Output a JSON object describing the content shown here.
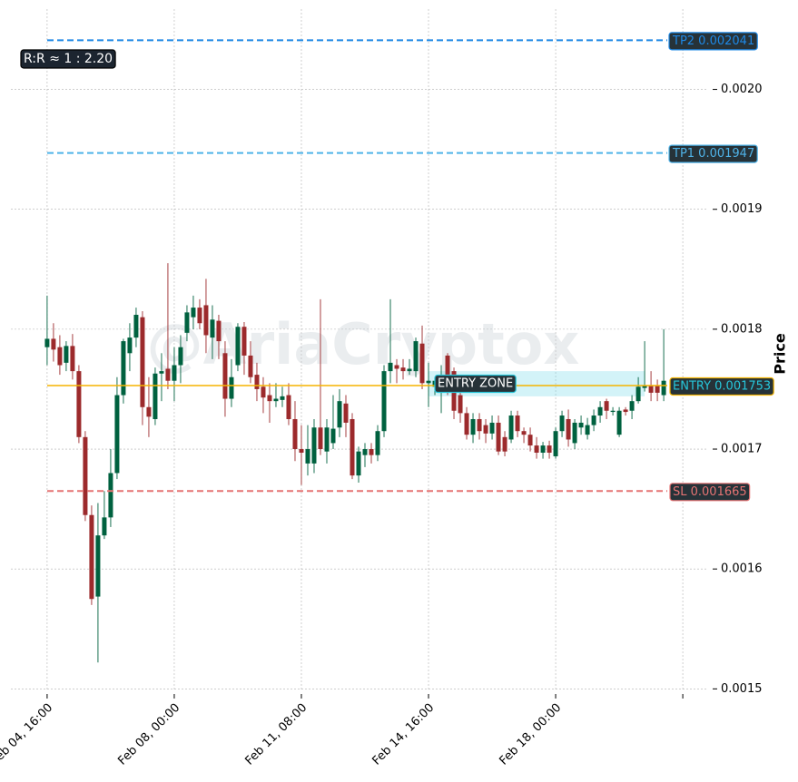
{
  "chart_data": {
    "type": "candlestick",
    "y_label": "Price",
    "watermark": "@AriaCryptox",
    "annotation": "R:R ≈ 1 : 2.20",
    "up_color": "#00613f",
    "down_color": "#9c2a2c",
    "grid": true,
    "xlim": [
      -5.7,
      103.7
    ],
    "xticks": [
      {
        "value": 0,
        "label": "Feb 04, 16:00"
      },
      {
        "value": 20,
        "label": "Feb 08, 00:00"
      },
      {
        "value": 40,
        "label": "Feb 11, 08:00"
      },
      {
        "value": 60,
        "label": "Feb 14, 16:00"
      },
      {
        "value": 80,
        "label": "Feb 18, 00:00"
      },
      {
        "value": 100,
        "label": null
      }
    ],
    "ylim": [
      0.001498,
      0.002067
    ],
    "yticks": [
      0.0015,
      0.0016,
      0.0017,
      0.0018,
      0.0019,
      {
        "value": 0.002,
        "label": "0.0020"
      }
    ],
    "open": [
      0.001785,
      0.001792,
      0.001785,
      0.001772,
      0.001786,
      0.001765,
      0.00171,
      0.001645,
      0.001577,
      0.001628,
      0.001643,
      0.00168,
      0.001745,
      0.00178,
      0.001793,
      0.00181,
      0.001735,
      0.001725,
      0.001763,
      0.001767,
      0.001757,
      0.00177,
      0.001797,
      0.00181,
      0.001818,
      0.00182,
      0.001793,
      0.001807,
      0.00178,
      0.001742,
      0.00177,
      0.001802,
      0.001778,
      0.001762,
      0.001752,
      0.001745,
      0.00174,
      0.001741,
      0.001745,
      0.001725,
      0.0017,
      0.001688,
      0.001688,
      0.001718,
      0.001698,
      0.001705,
      0.001718,
      0.001738,
      0.001725,
      0.001678,
      0.001695,
      0.0017,
      0.001695,
      0.001715,
      0.001765,
      0.00177,
      0.001768,
      0.001765,
      0.001765,
      0.001788,
      0.001755,
      0.001752,
      0.001757,
      0.001778,
      0.001765,
      0.001745,
      0.00173,
      0.001712,
      0.001725,
      0.00172,
      0.001713,
      0.001722,
      0.00171,
      0.001708,
      0.001728,
      0.001715,
      0.001712,
      0.001703,
      0.001697,
      0.001703,
      0.001694,
      0.001715,
      0.001725,
      0.001705,
      0.001718,
      0.001712,
      0.00172,
      0.001728,
      0.00174,
      0.001731,
      0.001712,
      0.001733,
      0.001732,
      0.00174,
      0.001751,
      0.001753,
      0.001753,
      0.001745
    ],
    "high": [
      0.001828,
      0.001805,
      0.001795,
      0.00179,
      0.001796,
      0.00177,
      0.001715,
      0.001653,
      0.001655,
      0.001665,
      0.0017,
      0.00176,
      0.001792,
      0.001805,
      0.001818,
      0.001815,
      0.00176,
      0.001768,
      0.00178,
      0.001855,
      0.001785,
      0.001795,
      0.00182,
      0.001828,
      0.001825,
      0.001842,
      0.00182,
      0.001812,
      0.00179,
      0.001775,
      0.001805,
      0.001806,
      0.00179,
      0.001772,
      0.00176,
      0.001755,
      0.001755,
      0.001752,
      0.001755,
      0.00174,
      0.00172,
      0.00172,
      0.001725,
      0.001825,
      0.001725,
      0.001745,
      0.00175,
      0.001745,
      0.00173,
      0.001702,
      0.001705,
      0.001705,
      0.00172,
      0.00177,
      0.001825,
      0.001775,
      0.001775,
      0.001775,
      0.001793,
      0.001803,
      0.001772,
      0.00176,
      0.00177,
      0.00178,
      0.001768,
      0.001755,
      0.001735,
      0.00173,
      0.00173,
      0.001725,
      0.001728,
      0.001728,
      0.001715,
      0.001732,
      0.001732,
      0.001718,
      0.001718,
      0.00171,
      0.001706,
      0.001707,
      0.001718,
      0.001732,
      0.001733,
      0.001725,
      0.001728,
      0.001726,
      0.001733,
      0.00174,
      0.001742,
      0.001735,
      0.001735,
      0.001735,
      0.001745,
      0.00176,
      0.00179,
      0.001765,
      0.001758,
      0.0018
    ],
    "low": [
      0.00177,
      0.001773,
      0.001762,
      0.001765,
      0.001758,
      0.001705,
      0.00164,
      0.00157,
      0.001522,
      0.001625,
      0.001635,
      0.001675,
      0.001738,
      0.001765,
      0.001785,
      0.00172,
      0.00171,
      0.00172,
      0.00174,
      0.00175,
      0.00174,
      0.001755,
      0.00179,
      0.0018,
      0.0018,
      0.00178,
      0.001775,
      0.001775,
      0.001727,
      0.001735,
      0.001765,
      0.001762,
      0.001755,
      0.00174,
      0.00173,
      0.001722,
      0.001735,
      0.001735,
      0.00172,
      0.00169,
      0.00167,
      0.001678,
      0.00168,
      0.001695,
      0.001688,
      0.0017,
      0.00171,
      0.00171,
      0.001675,
      0.001672,
      0.001685,
      0.001688,
      0.00169,
      0.00171,
      0.001755,
      0.001755,
      0.001758,
      0.001762,
      0.00176,
      0.00175,
      0.001735,
      0.001745,
      0.00173,
      0.001745,
      0.001725,
      0.001722,
      0.001708,
      0.001705,
      0.001708,
      0.001705,
      0.001708,
      0.001695,
      0.001694,
      0.001705,
      0.00171,
      0.001705,
      0.001698,
      0.001692,
      0.001692,
      0.001692,
      0.001692,
      0.00171,
      0.001702,
      0.0017,
      0.001712,
      0.001708,
      0.001715,
      0.001722,
      0.001725,
      0.001728,
      0.00171,
      0.001728,
      0.001725,
      0.001738,
      0.001748,
      0.00174,
      0.00174,
      0.00174
    ],
    "close": [
      0.001792,
      0.001783,
      0.00177,
      0.001786,
      0.001765,
      0.00171,
      0.001645,
      0.001575,
      0.001628,
      0.001643,
      0.00168,
      0.001745,
      0.00179,
      0.001793,
      0.001812,
      0.001735,
      0.001727,
      0.001763,
      0.001765,
      0.001757,
      0.00177,
      0.001785,
      0.001814,
      0.001818,
      0.001805,
      0.001795,
      0.001808,
      0.00179,
      0.001742,
      0.00176,
      0.001802,
      0.001778,
      0.00176,
      0.00175,
      0.001743,
      0.00174,
      0.001742,
      0.001744,
      0.001725,
      0.0017,
      0.001697,
      0.0017,
      0.001718,
      0.0017,
      0.001718,
      0.001717,
      0.00174,
      0.001722,
      0.001678,
      0.001698,
      0.0017,
      0.001695,
      0.001715,
      0.001765,
      0.001772,
      0.001767,
      0.001765,
      0.001767,
      0.00179,
      0.001755,
      0.001757,
      0.001757,
      0.001762,
      0.001752,
      0.001732,
      0.00173,
      0.001712,
      0.001725,
      0.001715,
      0.001713,
      0.001722,
      0.001698,
      0.001698,
      0.001728,
      0.001715,
      0.001712,
      0.001703,
      0.001697,
      0.001703,
      0.001697,
      0.001715,
      0.001728,
      0.001708,
      0.001722,
      0.001722,
      0.00172,
      0.001728,
      0.001735,
      0.001732,
      0.001732,
      0.001732,
      0.001731,
      0.00174,
      0.001752,
      0.001753,
      0.001747,
      0.001747,
      0.001757
    ],
    "levels": [
      {
        "label": "TP2 0.002041",
        "value": 0.002041,
        "color": "#1e88e5",
        "dashed": true
      },
      {
        "label": "TP1 0.001947",
        "value": 0.001947,
        "color": "#4fb3e8",
        "dashed": true
      },
      {
        "label": "ENTRY 0.001753",
        "value": 0.001753,
        "color": "#f5b400",
        "text_color": "#26c6da",
        "dashed": false
      },
      {
        "label": "SL 0.001665",
        "value": 0.001665,
        "color": "#e57373",
        "dashed": true
      }
    ],
    "entry_zone": {
      "label": "ENTRY ZONE",
      "low": 0.001744,
      "high": 0.001765,
      "x_start": 60,
      "x_end": 94,
      "color": "#80deea"
    }
  }
}
